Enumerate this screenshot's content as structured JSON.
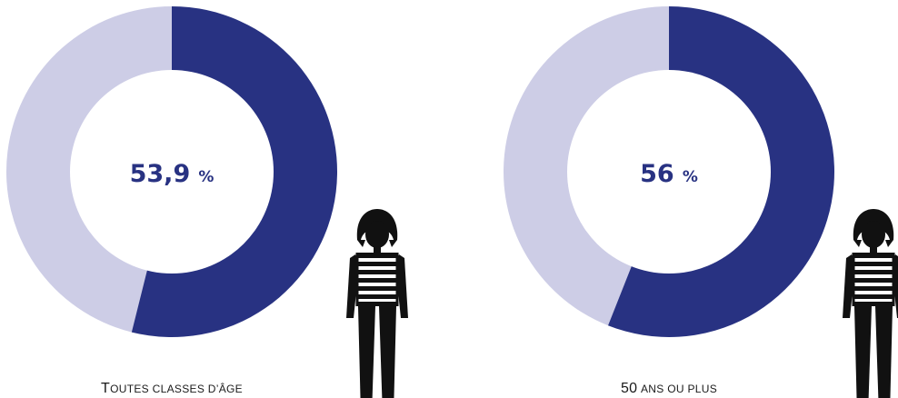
{
  "colors": {
    "primary": "#283282",
    "remainder": "#cdcde6",
    "text": "#283282",
    "figure": "#111111"
  },
  "icon": "woman-striped-shirt-icon",
  "chart_data": [
    {
      "type": "pie",
      "style": "donut",
      "value": 53.9,
      "value_label": "53,9",
      "unit": "%",
      "caption": "Toutes classes d’âge",
      "slices": [
        {
          "value": 53.9
        },
        {
          "value": 46.1
        }
      ]
    },
    {
      "type": "pie",
      "style": "donut",
      "value": 56,
      "value_label": "56",
      "unit": "%",
      "caption": "50 ans ou plus",
      "slices": [
        {
          "value": 56
        },
        {
          "value": 44
        }
      ]
    }
  ]
}
